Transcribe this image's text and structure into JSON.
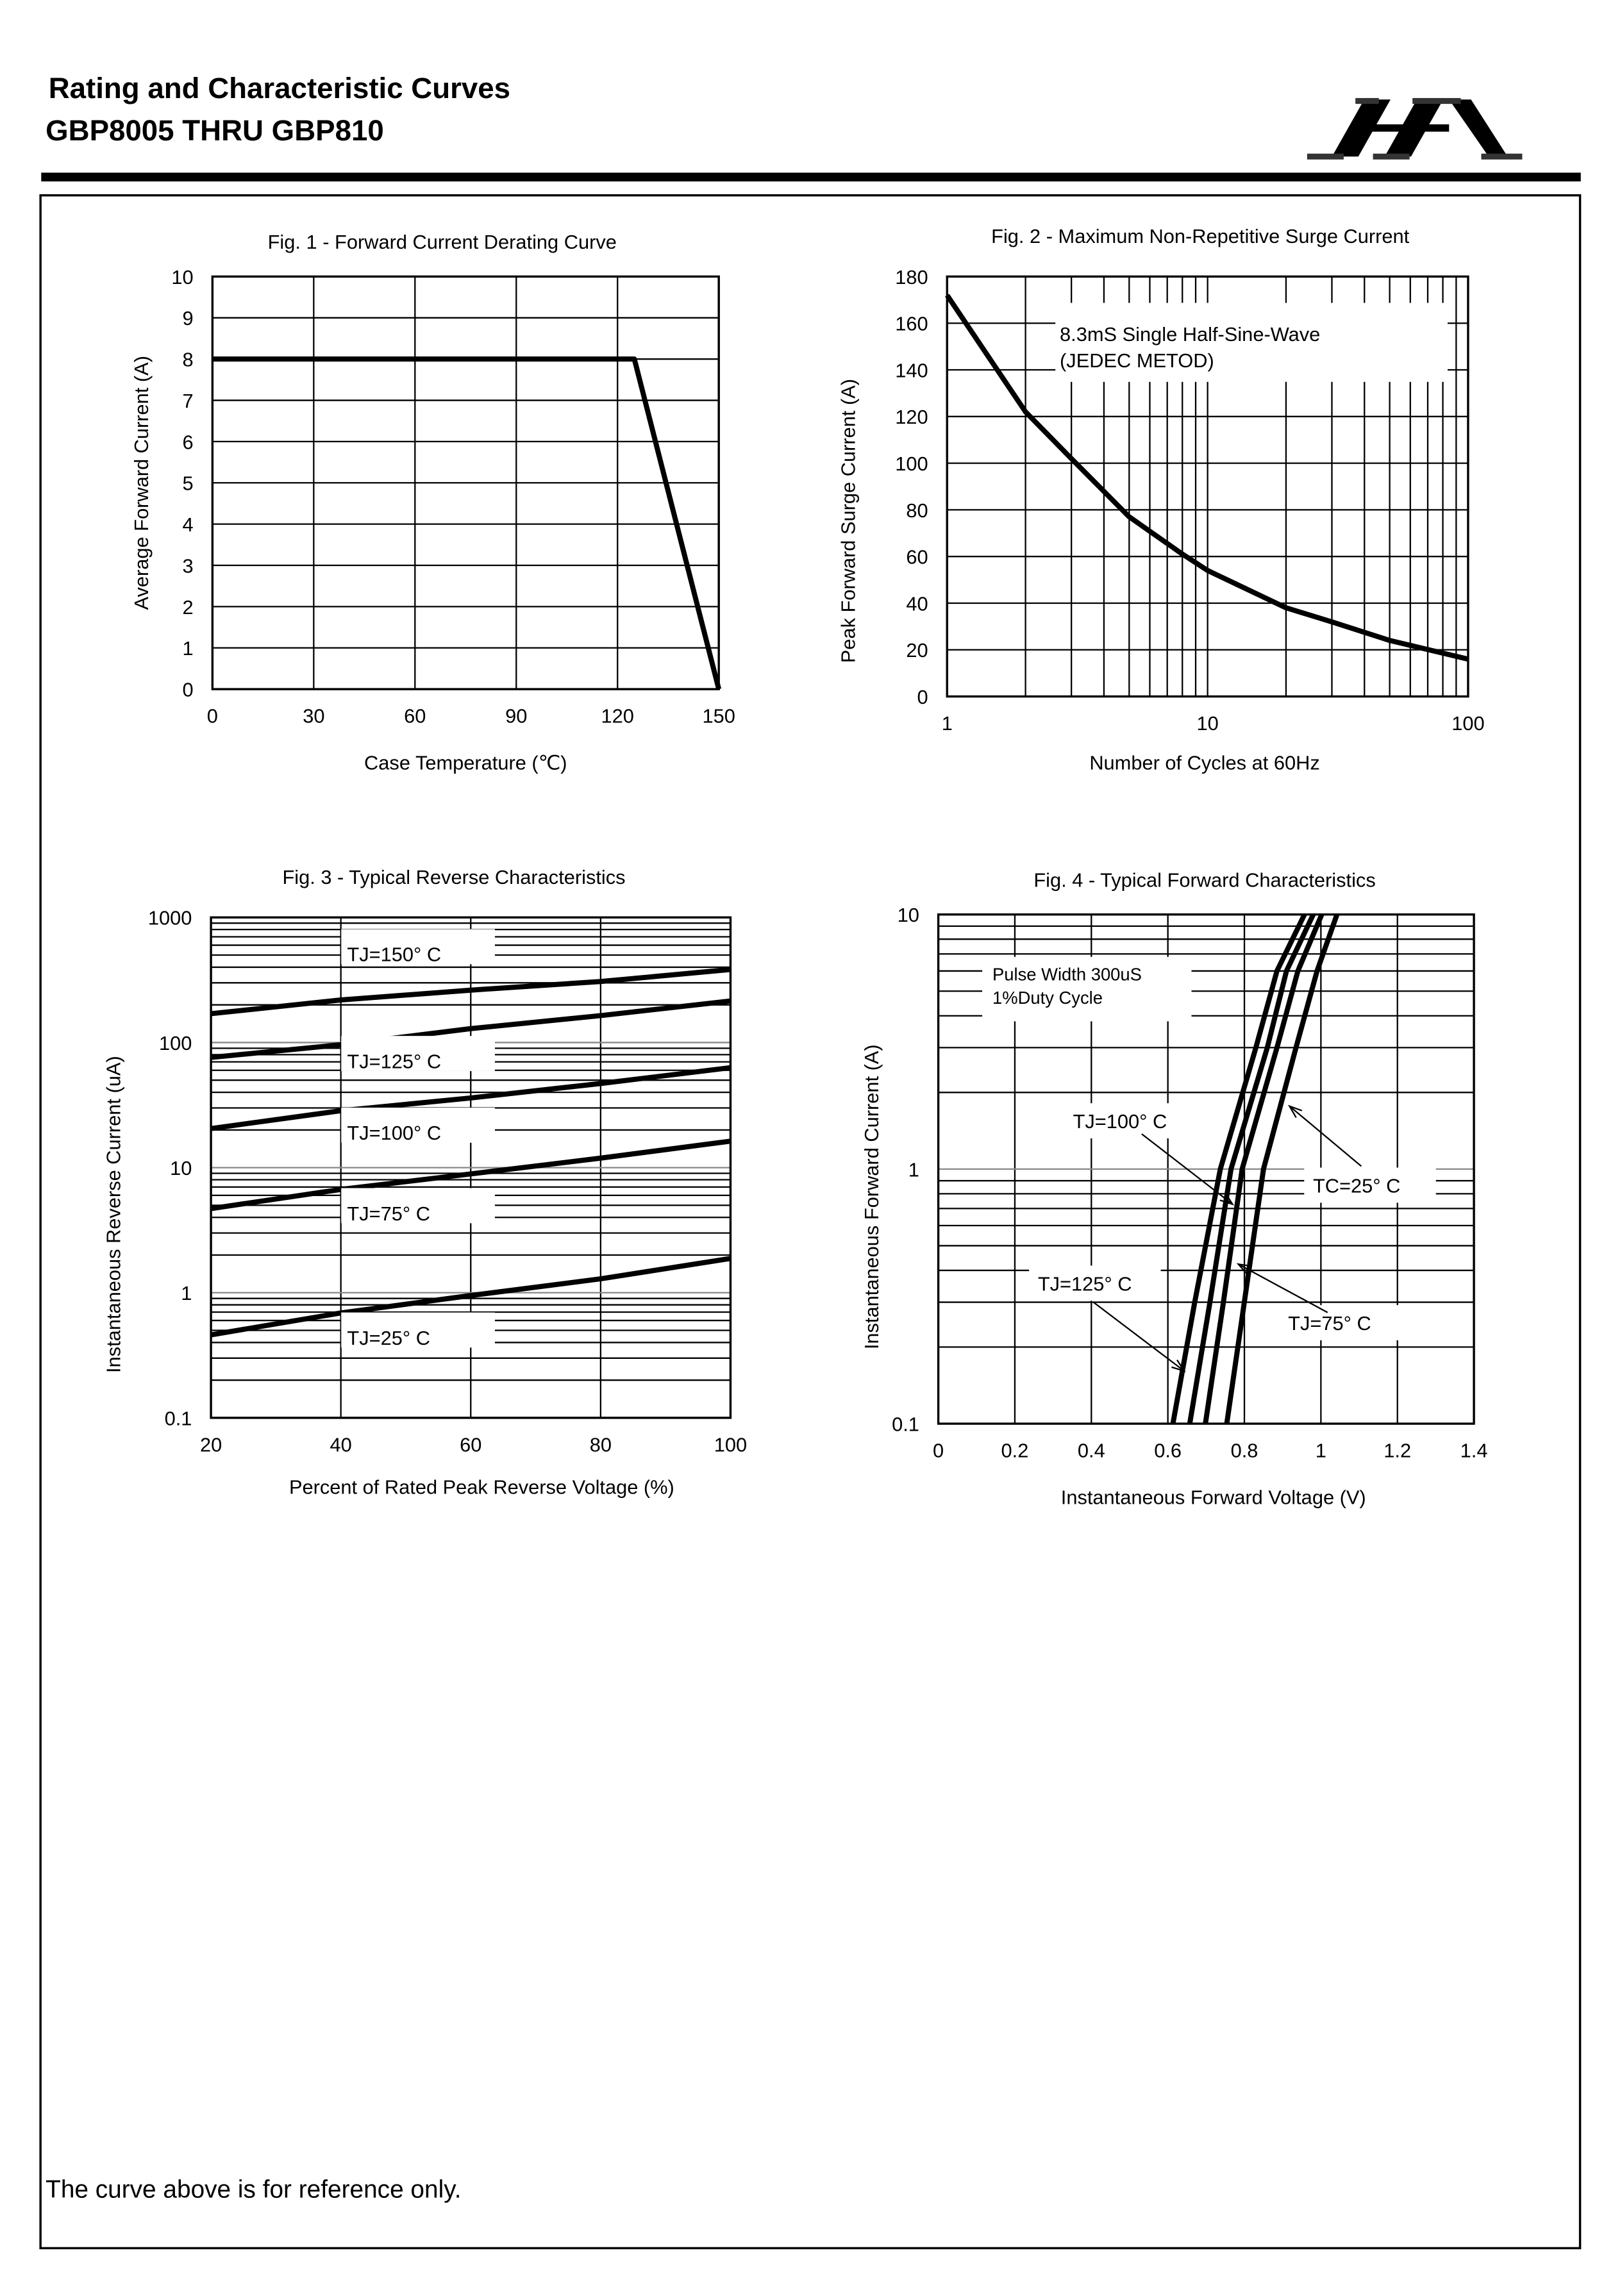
{
  "header": {
    "title": "Rating and Characteristic Curves",
    "subtitle": "GBP8005 THRU GBP810",
    "logo_text": "HA"
  },
  "footer": {
    "note": "The curve above is for reference only."
  },
  "chart_data": [
    {
      "type": "line",
      "title": "Fig. 1 - Forward Current Derating Curve",
      "xlabel": "Case Temperature (℃)",
      "ylabel": "Average Forward Current (A)",
      "xlim": [
        0,
        150
      ],
      "ylim": [
        0,
        10
      ],
      "xscale": "linear",
      "yscale": "linear",
      "xticks": [
        "0",
        "30",
        "60",
        "90",
        "120",
        "150"
      ],
      "yticks": [
        "0",
        "1",
        "2",
        "3",
        "4",
        "5",
        "6",
        "7",
        "8",
        "9",
        "10"
      ],
      "grid": true,
      "series": [
        {
          "x": [
            0,
            125,
            150
          ],
          "y": [
            8,
            8,
            0
          ]
        }
      ]
    },
    {
      "type": "line",
      "title": "Fig. 2 - Maximum Non-Repetitive Surge Current",
      "xlabel": "Number of Cycles at 60Hz",
      "ylabel": "Peak Forward Surge Current (A)",
      "xlim": [
        1,
        100
      ],
      "ylim": [
        0,
        180
      ],
      "xscale": "log",
      "yscale": "linear",
      "xticks": [
        "1",
        "10",
        "100"
      ],
      "yticks": [
        "0",
        "20",
        "40",
        "60",
        "80",
        "100",
        "120",
        "140",
        "160",
        "180"
      ],
      "grid": true,
      "annotations": [
        "8.3mS Single Half-Sine-Wave",
        "(JEDEC METOD)"
      ],
      "series": [
        {
          "x": [
            1,
            2,
            3,
            5,
            8,
            10,
            20,
            30,
            50,
            100
          ],
          "y": [
            172,
            122,
            102,
            77,
            61,
            54,
            38,
            32,
            24,
            16
          ]
        }
      ]
    },
    {
      "type": "line",
      "title": "Fig. 3 - Typical Reverse Characteristics",
      "xlabel": "Percent of Rated Peak Reverse Voltage (%)",
      "ylabel": "Instantaneous Reverse Current (uA)",
      "xlim": [
        20,
        100
      ],
      "ylim": [
        0.1,
        1000
      ],
      "xscale": "linear",
      "yscale": "log",
      "xticks": [
        "20",
        "40",
        "60",
        "80",
        "100"
      ],
      "yticks": [
        "0.1",
        "1",
        "10",
        "100",
        "1000"
      ],
      "grid": true,
      "series": [
        {
          "name": "TJ=150° C",
          "x": [
            20,
            40,
            60,
            80,
            100
          ],
          "y": [
            170,
            219,
            262,
            307,
            383
          ]
        },
        {
          "name": "TJ=125° C",
          "x": [
            20,
            40,
            60,
            80,
            100
          ],
          "y": [
            76,
            96,
            129,
            164,
            215
          ]
        },
        {
          "name": "TJ=100° C",
          "x": [
            20,
            40,
            60,
            80,
            100
          ],
          "y": [
            20.5,
            28.5,
            36,
            47,
            63
          ]
        },
        {
          "name": "TJ=75° C",
          "x": [
            20,
            40,
            60,
            80,
            100
          ],
          "y": [
            4.7,
            6.7,
            8.9,
            11.9,
            16.3
          ]
        },
        {
          "name": "TJ=25° C",
          "x": [
            20,
            40,
            60,
            80,
            100
          ],
          "y": [
            0.46,
            0.69,
            0.95,
            1.29,
            1.88
          ]
        }
      ]
    },
    {
      "type": "line",
      "title": "Fig. 4 - Typical Forward Characteristics",
      "xlabel": "Instantaneous Forward Voltage (V)",
      "ylabel": "Instantaneous Forward Current (A)",
      "xlim": [
        0,
        1.4
      ],
      "ylim": [
        0.1,
        10
      ],
      "xscale": "linear",
      "yscale": "log",
      "xticks": [
        "0",
        "0.2",
        "0.4",
        "0.6",
        "0.8",
        "1",
        "1.2",
        "1.4"
      ],
      "yticks": [
        "0.1",
        "1",
        "10"
      ],
      "grid": true,
      "annotations": [
        "Pulse Width 300uS",
        "1%Duty Cycle"
      ],
      "series": [
        {
          "name": "TJ=125° C",
          "x": [
            0.613,
            0.67,
            0.737,
            0.83,
            0.885,
            0.957
          ],
          "y": [
            0.1,
            0.3,
            1,
            3,
            6,
            10
          ]
        },
        {
          "name": "TJ=100° C",
          "x": [
            0.657,
            0.71,
            0.765,
            0.86,
            0.91,
            0.98
          ],
          "y": [
            0.1,
            0.3,
            1,
            3,
            6,
            10
          ]
        },
        {
          "name": "TJ=75° C",
          "x": [
            0.698,
            0.745,
            0.794,
            0.885,
            0.94,
            1.002
          ],
          "y": [
            0.1,
            0.3,
            1,
            3,
            6,
            10
          ]
        },
        {
          "name": "TC=25° C",
          "x": [
            0.754,
            0.8,
            0.85,
            0.935,
            0.99,
            1.042
          ],
          "y": [
            0.1,
            0.3,
            1,
            3,
            6,
            10
          ]
        }
      ]
    }
  ]
}
